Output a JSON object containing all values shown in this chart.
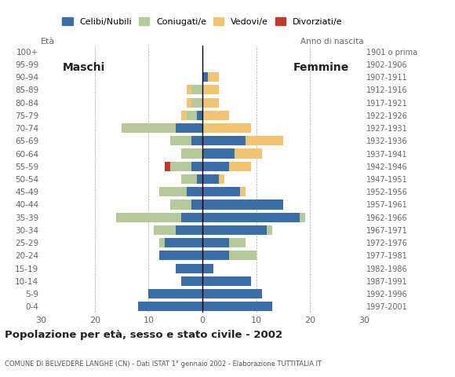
{
  "age_groups": [
    "0-4",
    "5-9",
    "10-14",
    "15-19",
    "20-24",
    "25-29",
    "30-34",
    "35-39",
    "40-44",
    "45-49",
    "50-54",
    "55-59",
    "60-64",
    "65-69",
    "70-74",
    "75-79",
    "80-84",
    "85-89",
    "90-94",
    "95-99",
    "100+"
  ],
  "birth_years": [
    "1997-2001",
    "1992-1996",
    "1987-1991",
    "1982-1986",
    "1977-1981",
    "1972-1976",
    "1967-1971",
    "1962-1966",
    "1957-1961",
    "1952-1956",
    "1947-1951",
    "1942-1946",
    "1937-1941",
    "1932-1936",
    "1927-1931",
    "1922-1926",
    "1917-1921",
    "1912-1916",
    "1907-1911",
    "1902-1906",
    "1901 o prima"
  ],
  "male_celibe": [
    12,
    10,
    4,
    5,
    8,
    7,
    5,
    4,
    2,
    3,
    1,
    2,
    0,
    2,
    5,
    1,
    0,
    0,
    0,
    0,
    0
  ],
  "male_coniugato": [
    0,
    0,
    0,
    0,
    0,
    1,
    4,
    12,
    4,
    5,
    3,
    4,
    4,
    4,
    10,
    2,
    2,
    2,
    0,
    0,
    0
  ],
  "male_vedovo": [
    0,
    0,
    0,
    0,
    0,
    0,
    0,
    0,
    0,
    0,
    0,
    0,
    0,
    0,
    0,
    1,
    1,
    1,
    0,
    0,
    0
  ],
  "male_divorziato": [
    0,
    0,
    0,
    0,
    0,
    0,
    0,
    0,
    0,
    0,
    0,
    1,
    0,
    0,
    0,
    0,
    0,
    0,
    0,
    0,
    0
  ],
  "fem_nubile": [
    13,
    11,
    9,
    2,
    5,
    5,
    12,
    18,
    15,
    7,
    3,
    5,
    6,
    8,
    0,
    0,
    0,
    0,
    1,
    0,
    0
  ],
  "fem_coniugata": [
    0,
    0,
    0,
    0,
    5,
    3,
    1,
    1,
    0,
    0,
    0,
    0,
    0,
    0,
    0,
    0,
    0,
    0,
    0,
    0,
    0
  ],
  "fem_vedova": [
    0,
    0,
    0,
    0,
    0,
    0,
    0,
    0,
    0,
    1,
    1,
    4,
    5,
    7,
    9,
    5,
    3,
    3,
    2,
    0,
    0
  ],
  "fem_divorziata": [
    0,
    0,
    0,
    0,
    0,
    0,
    0,
    0,
    0,
    0,
    0,
    0,
    0,
    0,
    0,
    0,
    0,
    0,
    0,
    0,
    0
  ],
  "colors": {
    "celibe_nubile": "#3B6EA6",
    "coniugato": "#B5C99A",
    "vedovo": "#F0C472",
    "divorziato": "#C0392B"
  },
  "xlim": 30,
  "title": "Popolazione per età, sesso e stato civile - 2002",
  "subtitle": "COMUNE DI BELVEDERE LANGHE (CN) - Dati ISTAT 1° gennaio 2002 - Elaborazione TUTTITALIA.IT",
  "legend_labels": [
    "Celibi/Nubili",
    "Coniugati/e",
    "Vedovi/e",
    "Divorziati/e"
  ],
  "maschi_label": "Maschi",
  "femmine_label": "Femmine",
  "eta_label": "Età",
  "anno_label": "Anno di nascita"
}
